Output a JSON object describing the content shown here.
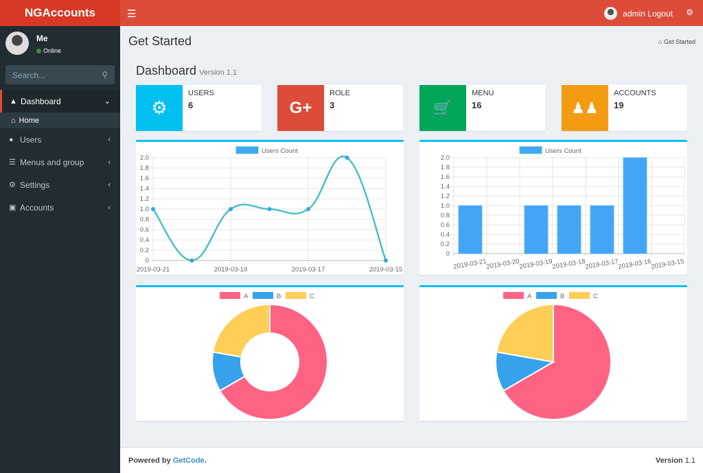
{
  "app": {
    "title": "NGAccounts"
  },
  "navbar": {
    "user_label": "admin Logout"
  },
  "sidebar": {
    "user": "Me",
    "status": "Online",
    "search_placeholder": "Search...",
    "items": [
      {
        "label": "Dashboard",
        "icon": "dashboard-icon"
      },
      {
        "label": "Users",
        "icon": "users-icon"
      },
      {
        "label": "Menus and group",
        "icon": "bars-icon"
      },
      {
        "label": "Settings",
        "icon": "gears-icon"
      },
      {
        "label": "Accounts",
        "icon": "money-icon"
      }
    ],
    "sub_home": "Home"
  },
  "page": {
    "title": "Get Started",
    "breadcrumb": "Get Started",
    "heading": "Dashboard",
    "version": "Version 1.1"
  },
  "stats": [
    {
      "label": "USERS",
      "value": "6",
      "color": "#00c0ef",
      "icon": "gear-icon"
    },
    {
      "label": "ROLE",
      "value": "3",
      "color": "#dd4b39",
      "icon": "google-plus-icon"
    },
    {
      "label": "MENU",
      "value": "16",
      "color": "#00a65a",
      "icon": "cart-icon"
    },
    {
      "label": "ACCOUNTS",
      "value": "19",
      "color": "#f39c12",
      "icon": "users-group-icon"
    }
  ],
  "chart_data": [
    {
      "type": "line",
      "legend": "Users Count",
      "categories": [
        "2019-03-21",
        "2019-03-20",
        "2019-03-19",
        "2019-03-18",
        "2019-03-17",
        "2019-03-16",
        "2019-03-15"
      ],
      "values": [
        1,
        0,
        1,
        1,
        1,
        2,
        0
      ],
      "ylim": [
        0,
        2
      ],
      "yticks": [
        "0",
        "0.2",
        "0.4",
        "0.6",
        "0.8",
        "1.0",
        "1.2",
        "1.4",
        "1.6",
        "1.8",
        "2.0"
      ],
      "shown_xticks": [
        "2019-03-21",
        "2019-03-19",
        "2019-03-17",
        "2019-03-15"
      ],
      "color": "#4bc0c0",
      "point_color": "#36a2eb",
      "grid": true,
      "legend_position": "top"
    },
    {
      "type": "bar",
      "legend": "Users Count",
      "categories": [
        "2019-03-21",
        "2019-03-20",
        "2019-03-19",
        "2019-03-18",
        "2019-03-17",
        "2019-03-16",
        "2019-03-15"
      ],
      "values": [
        1,
        0,
        1,
        1,
        1,
        2,
        0
      ],
      "ylim": [
        0,
        2
      ],
      "yticks": [
        "0",
        "0.2",
        "0.4",
        "0.6",
        "0.8",
        "1.0",
        "1.2",
        "1.4",
        "1.6",
        "1.8",
        "2.0"
      ],
      "color": "#42a5f5",
      "grid": true,
      "legend_position": "top"
    },
    {
      "type": "doughnut",
      "labels": [
        "A",
        "B",
        "C"
      ],
      "values": [
        300,
        50,
        100
      ],
      "colors": [
        "#ff6384",
        "#36a2eb",
        "#ffce56"
      ],
      "legend_position": "top"
    },
    {
      "type": "pie",
      "labels": [
        "A",
        "B",
        "C"
      ],
      "values": [
        300,
        50,
        100
      ],
      "colors": [
        "#ff6384",
        "#36a2eb",
        "#ffce56"
      ],
      "legend_position": "top"
    }
  ],
  "footer": {
    "powered": "Powered by",
    "brand": "GetCode",
    "dot": ".",
    "version_label": "Version",
    "version": "1.1"
  }
}
